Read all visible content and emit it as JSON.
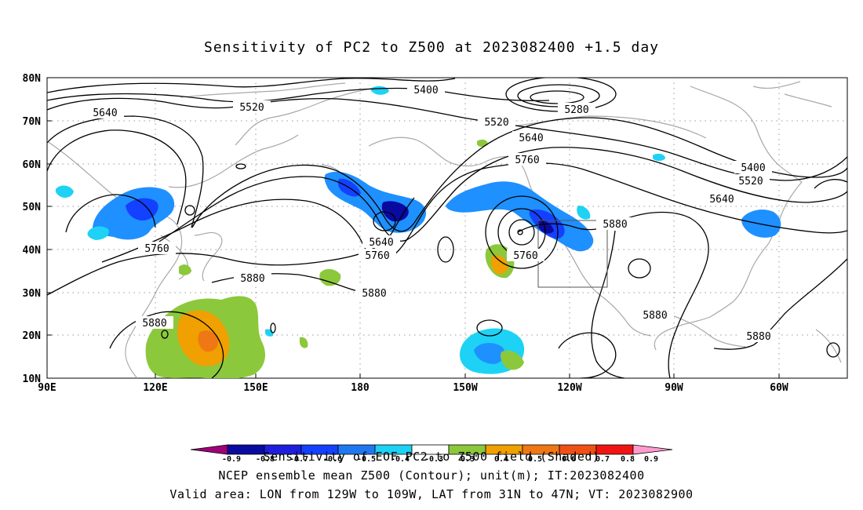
{
  "title": "Sensitivity of PC2 to Z500 at 2023082400 +1.5 day",
  "axes": {
    "lat_labels": [
      "80N",
      "70N",
      "60N",
      "50N",
      "40N",
      "30N",
      "20N",
      "10N"
    ],
    "lon_labels": [
      "90E",
      "120E",
      "150E",
      "180",
      "150W",
      "120W",
      "90W",
      "60W"
    ],
    "lat_range": [
      10,
      80
    ],
    "lon_range_east": [
      90,
      312
    ]
  },
  "contour_labels": [
    "5400",
    "5280",
    "5520",
    "5520",
    "5640",
    "5640",
    "5640",
    "5760",
    "5760",
    "5760",
    "5760",
    "5880",
    "5880",
    "5880",
    "5880",
    "5880",
    "5880",
    "5400",
    "5520",
    "5640"
  ],
  "colorbar": {
    "tick_labels": [
      "-0.9",
      "-0.8",
      "-0.7",
      "-0.6",
      "-0.5",
      "-0.4",
      "-0.3",
      "0.3",
      "0.4",
      "0.5",
      "0.6",
      "0.7",
      "0.8",
      "0.9"
    ],
    "colors": [
      "#a0007a",
      "#0a0aa0",
      "#1e1edc",
      "#1440ff",
      "#1e78f0",
      "#1ea0f0",
      "#1ed2f5",
      "#ffffff",
      "#8cc83c",
      "#f0a000",
      "#f07814",
      "#f05014",
      "#f01414",
      "#ff9ccd"
    ]
  },
  "valid_box": {
    "lon_w": [
      129,
      109
    ],
    "lat_n": [
      31,
      47
    ]
  },
  "captions": {
    "line1": "Sensitivity of EOF PC2 to Z500 field (Shaded)",
    "line2": "NCEP ensemble mean Z500 (Contour); unit(m); IT:2023082400",
    "line3": "Valid area: LON from 129W to 109W, LAT from 31N to 47N; VT: 2023082900"
  }
}
